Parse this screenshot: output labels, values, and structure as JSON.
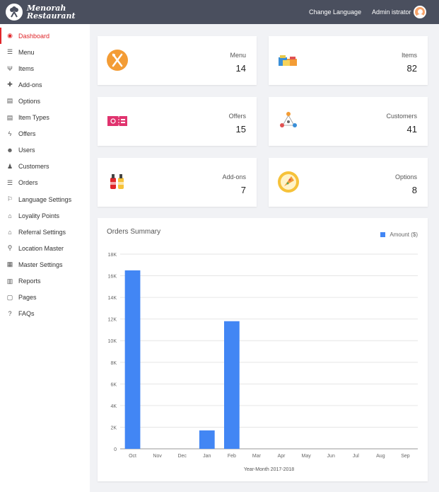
{
  "header": {
    "brand_line1": "Menorah",
    "brand_line2": "Restaurant",
    "change_language": "Change Language",
    "user_name": "Admin istrator"
  },
  "sidebar": {
    "items": [
      {
        "label": "Dashboard",
        "icon": "dashboard-icon",
        "glyph": "◉"
      },
      {
        "label": "Menu",
        "icon": "menu-icon",
        "glyph": "☰"
      },
      {
        "label": "Items",
        "icon": "items-icon",
        "glyph": "Ψ"
      },
      {
        "label": "Add-ons",
        "icon": "plus-icon",
        "glyph": "✚"
      },
      {
        "label": "Options",
        "icon": "options-icon",
        "glyph": "▤"
      },
      {
        "label": "Item Types",
        "icon": "item-types-icon",
        "glyph": "▤"
      },
      {
        "label": "Offers",
        "icon": "bolt-icon",
        "glyph": "ϟ"
      },
      {
        "label": "Users",
        "icon": "users-icon",
        "glyph": "☻"
      },
      {
        "label": "Customers",
        "icon": "customer-icon",
        "glyph": "♟"
      },
      {
        "label": "Orders",
        "icon": "orders-icon",
        "glyph": "☰"
      },
      {
        "label": "Language Settings",
        "icon": "language-icon",
        "glyph": "⚐"
      },
      {
        "label": "Loyality Points",
        "icon": "gift-icon",
        "glyph": "⌂"
      },
      {
        "label": "Referral Settings",
        "icon": "gift-icon",
        "glyph": "⌂"
      },
      {
        "label": "Location Master",
        "icon": "location-pin-icon",
        "glyph": "⚲"
      },
      {
        "label": "Master Settings",
        "icon": "master-settings-icon",
        "glyph": "▦"
      },
      {
        "label": "Reports",
        "icon": "bar-chart-icon",
        "glyph": "▥"
      },
      {
        "label": "Pages",
        "icon": "page-icon",
        "glyph": "▢"
      },
      {
        "label": "FAQs",
        "icon": "question-icon",
        "glyph": "?"
      }
    ]
  },
  "stats": [
    {
      "label": "Menu",
      "value": "14",
      "icon": "menu-fork-knife-icon"
    },
    {
      "label": "Items",
      "value": "82",
      "icon": "items-food-icon"
    },
    {
      "label": "Offers",
      "value": "15",
      "icon": "offers-ticket-icon"
    },
    {
      "label": "Customers",
      "value": "41",
      "icon": "customers-network-icon"
    },
    {
      "label": "Add-ons",
      "value": "7",
      "icon": "addons-sauce-icon"
    },
    {
      "label": "Options",
      "value": "8",
      "icon": "options-pizza-icon"
    }
  ],
  "colors": {
    "accent": "#e0262a",
    "bar": "#4286f4",
    "header_bg": "#4a4f5e"
  },
  "chart_data": {
    "type": "bar",
    "title": "Orders Summary",
    "xlabel": "Year-Month 2017-2018",
    "ylabel": "",
    "categories": [
      "Oct",
      "Nov",
      "Dec",
      "Jan",
      "Feb",
      "Mar",
      "Apr",
      "May",
      "Jun",
      "Jul",
      "Aug",
      "Sep"
    ],
    "series": [
      {
        "name": "Amount ($)",
        "values": [
          16500,
          0,
          0,
          1700,
          11800,
          0,
          0,
          0,
          0,
          0,
          0,
          0
        ]
      }
    ],
    "ylim": [
      0,
      18000
    ],
    "yticks": [
      "0",
      "2K",
      "4K",
      "6K",
      "8K",
      "10K",
      "12K",
      "14K",
      "16K",
      "18K"
    ],
    "grid": true,
    "legend_position": "top-right"
  }
}
